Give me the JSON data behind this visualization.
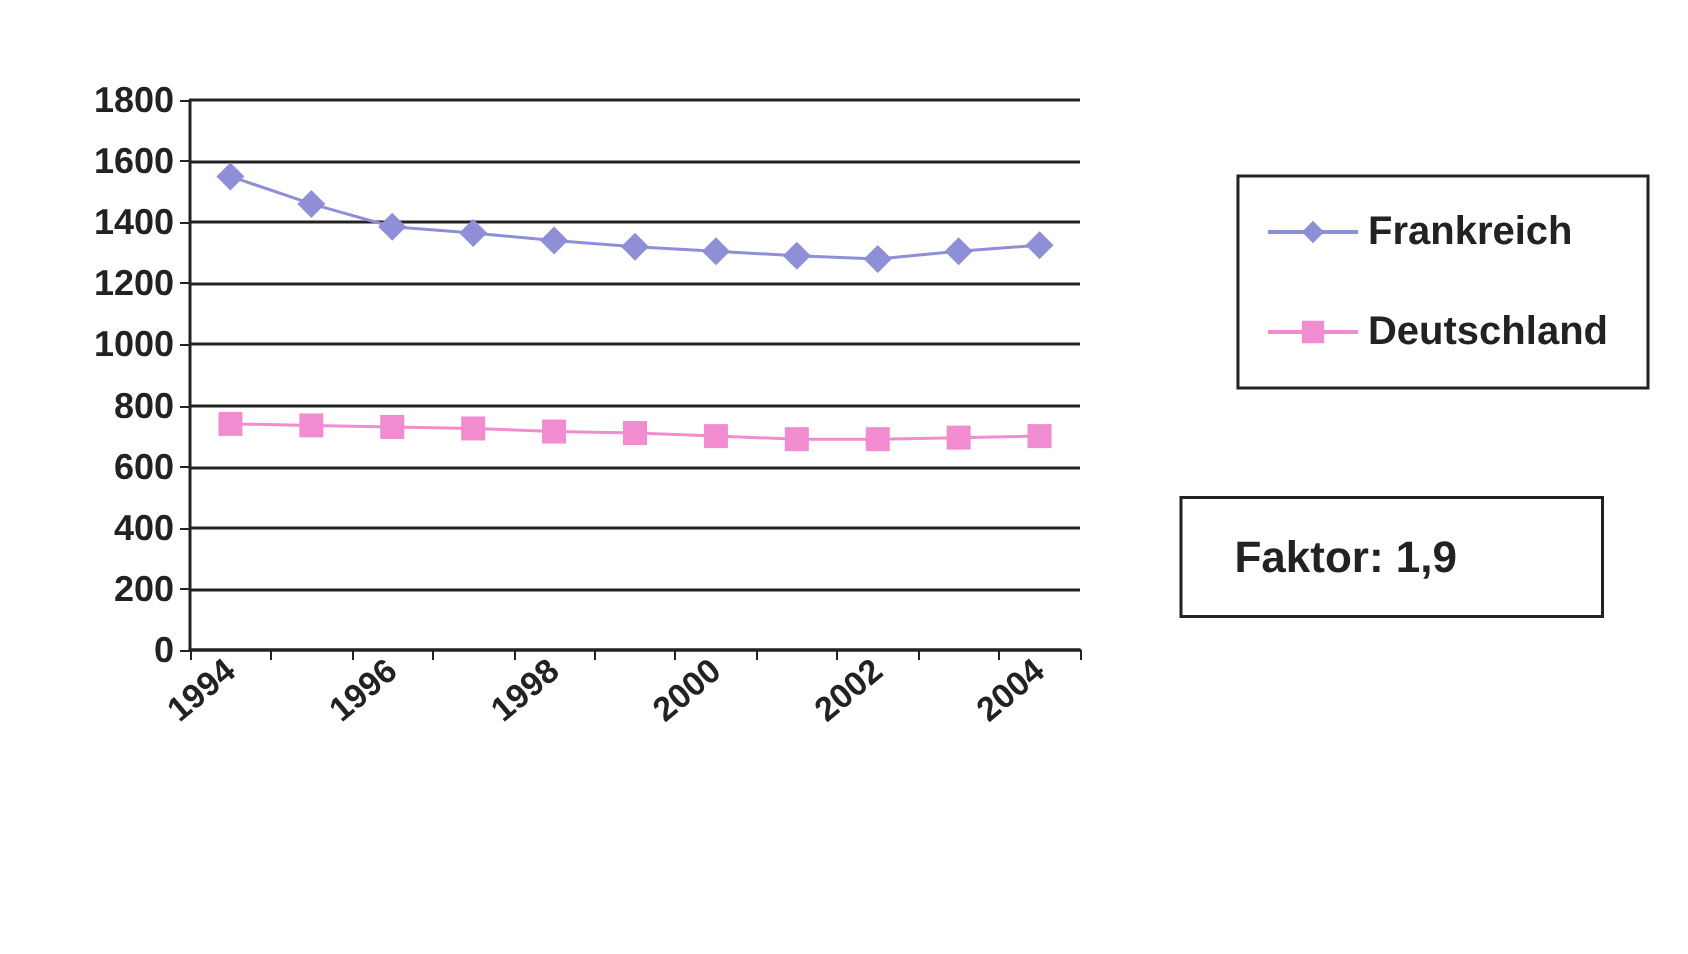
{
  "chart_data": {
    "type": "line",
    "categories": [
      "1994",
      null,
      "1996",
      null,
      "1998",
      null,
      "2000",
      null,
      "2002",
      null,
      "2004"
    ],
    "series": [
      {
        "name": "Frankreich",
        "color": "#8f8fd8",
        "marker": "diamond",
        "values": [
          1550,
          1460,
          1385,
          1365,
          1340,
          1320,
          1305,
          1290,
          1280,
          1305,
          1325
        ]
      },
      {
        "name": "Deutschland",
        "color": "#f08ccf",
        "marker": "square",
        "values": [
          740,
          735,
          730,
          725,
          715,
          710,
          700,
          690,
          690,
          695,
          700
        ]
      }
    ],
    "ylim": [
      0,
      1800
    ],
    "yticks": [
      0,
      200,
      400,
      600,
      800,
      1000,
      1200,
      1400,
      1600,
      1800
    ],
    "grid": "y",
    "legend": "right",
    "annotations": [
      "Faktor: 1,9"
    ]
  }
}
